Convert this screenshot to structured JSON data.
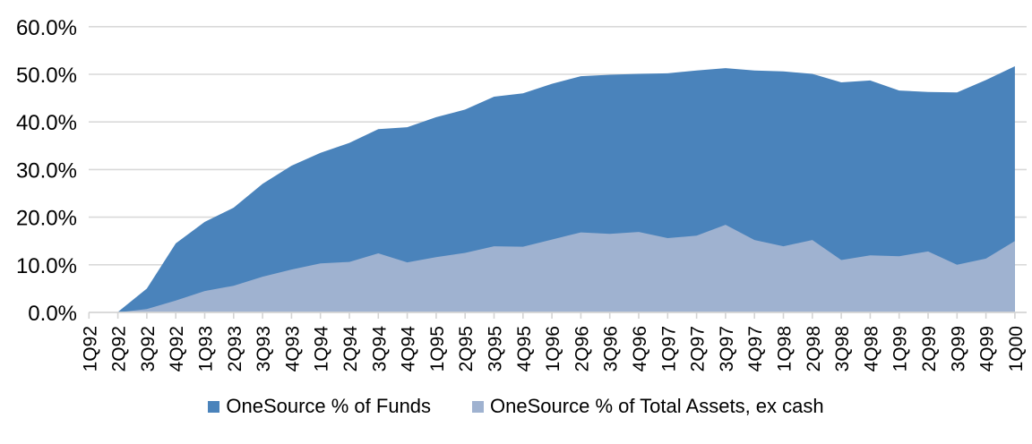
{
  "chart_data": {
    "type": "area",
    "mode": "overlapping",
    "title": "",
    "categories": [
      "1Q92",
      "2Q92",
      "3Q92",
      "4Q92",
      "1Q93",
      "2Q93",
      "3Q93",
      "4Q93",
      "1Q94",
      "2Q94",
      "3Q94",
      "4Q94",
      "1Q95",
      "2Q95",
      "3Q95",
      "4Q95",
      "1Q96",
      "2Q96",
      "3Q96",
      "4Q96",
      "1Q97",
      "2Q97",
      "3Q97",
      "4Q97",
      "1Q98",
      "2Q98",
      "3Q98",
      "4Q98",
      "1Q99",
      "2Q99",
      "3Q99",
      "4Q99",
      "1Q00"
    ],
    "series": [
      {
        "name": "OneSource % of Funds",
        "color": "#4A83BB",
        "values": [
          0.0,
          0.1,
          5.0,
          14.5,
          19.0,
          22.0,
          27.0,
          30.8,
          33.5,
          35.6,
          38.5,
          38.9,
          41.0,
          42.6,
          45.3,
          46.0,
          48.0,
          49.6,
          49.9,
          50.1,
          50.2,
          50.8,
          51.3,
          50.8,
          50.6,
          50.1,
          48.3,
          48.7,
          46.6,
          46.3,
          46.2,
          48.8,
          51.7
        ]
      },
      {
        "name": "OneSource % of Total Assets, ex cash",
        "color": "#9FB2D0",
        "values": [
          0.0,
          0.0,
          0.7,
          2.5,
          4.5,
          5.6,
          7.5,
          9.0,
          10.3,
          10.6,
          12.4,
          10.5,
          11.6,
          12.5,
          13.9,
          13.8,
          15.3,
          16.8,
          16.5,
          16.9,
          15.6,
          16.1,
          18.4,
          15.2,
          13.9,
          15.2,
          11.0,
          12.0,
          11.8,
          12.8,
          10.0,
          11.3,
          15.0
        ]
      }
    ],
    "y_axis": {
      "min": 0,
      "max": 60,
      "step": 10,
      "unit": "%",
      "tick_labels": [
        "0.0%",
        "10.0%",
        "20.0%",
        "30.0%",
        "40.0%",
        "50.0%",
        "60.0%"
      ]
    },
    "x_axis": {
      "label_rotation": -90
    },
    "legend_position": "bottom",
    "grid": true,
    "colors": {
      "gridline": "#D9D9D9",
      "axis": "#D4D4D4",
      "text": "#000000",
      "background": "#FFFFFF"
    }
  }
}
